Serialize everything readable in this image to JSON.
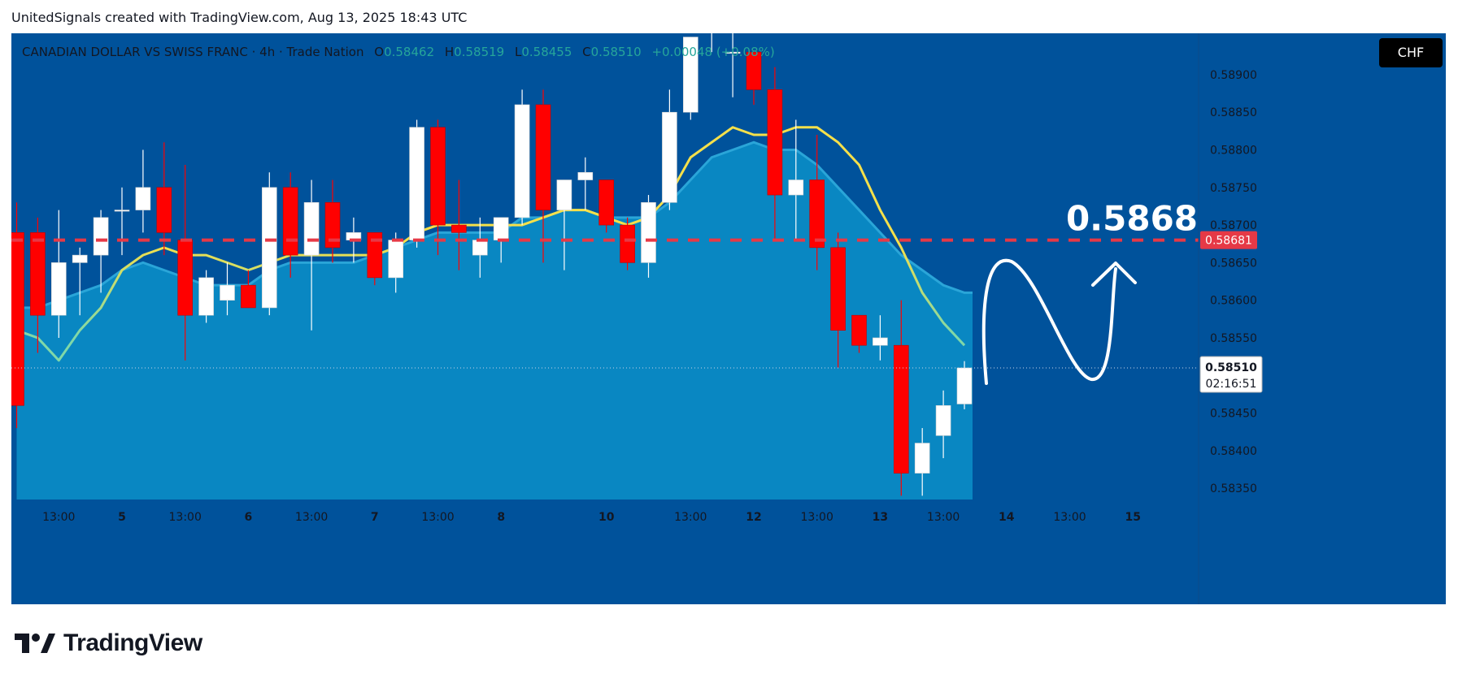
{
  "caption": "UnitedSignals created with TradingView.com, Aug 13, 2025 18:43 UTC",
  "legend": {
    "symbol": "CANADIAN DOLLAR VS SWISS FRANC · 4h · Trade Nation",
    "open_label": "O",
    "open": "0.58462",
    "high_label": "H",
    "high": "0.58519",
    "low_label": "L",
    "low": "0.58455",
    "close_label": "C",
    "close": "0.58510",
    "change": "+0.00048 (+0.08%)"
  },
  "currency": "CHF",
  "brand": "TradingView",
  "colors": {
    "background": "#00529b",
    "area_fill": "#0a8ac4",
    "up_candle": "#ffffff",
    "down_candle": "#ff0000",
    "ma_line_top": "#f5e04a",
    "ma_line_bottom": "#7fd8a8",
    "target_line": "#e63946",
    "price_badge": "#e63946"
  },
  "chart_data": {
    "type": "candlestick",
    "timeframe": "4h",
    "y_range": [
      0.58335,
      0.58955
    ],
    "y_ticks": [
      "0.58900",
      "0.58850",
      "0.58800",
      "0.58750",
      "0.58700",
      "0.58650",
      "0.58600",
      "0.58550",
      "0.58500",
      "0.58450",
      "0.58400",
      "0.58350"
    ],
    "y_tick_values": [
      0.589,
      0.5885,
      0.588,
      0.5875,
      0.587,
      0.5865,
      0.586,
      0.5855,
      0.585,
      0.5845,
      0.584,
      0.5835
    ],
    "x_ticks": [
      {
        "label": "13:00",
        "bar": 2
      },
      {
        "label": "5",
        "bar": 5
      },
      {
        "label": "13:00",
        "bar": 8
      },
      {
        "label": "6",
        "bar": 11
      },
      {
        "label": "13:00",
        "bar": 14
      },
      {
        "label": "7",
        "bar": 17
      },
      {
        "label": "13:00",
        "bar": 20
      },
      {
        "label": "8",
        "bar": 23
      },
      {
        "label": "10",
        "bar": 28
      },
      {
        "label": "13:00",
        "bar": 32
      },
      {
        "label": "12",
        "bar": 35
      },
      {
        "label": "13:00",
        "bar": 38
      },
      {
        "label": "13",
        "bar": 41
      },
      {
        "label": "13:00",
        "bar": 44
      },
      {
        "label": "14",
        "bar": 47
      },
      {
        "label": "13:00",
        "bar": 50
      },
      {
        "label": "15",
        "bar": 53
      }
    ],
    "candles": [
      {
        "o": 0.5869,
        "h": 0.5873,
        "l": 0.5843,
        "c": 0.5846
      },
      {
        "o": 0.5869,
        "h": 0.5871,
        "l": 0.5853,
        "c": 0.5858
      },
      {
        "o": 0.5858,
        "h": 0.5872,
        "l": 0.5855,
        "c": 0.5865
      },
      {
        "o": 0.5865,
        "h": 0.5867,
        "l": 0.5858,
        "c": 0.5866
      },
      {
        "o": 0.5866,
        "h": 0.5872,
        "l": 0.5861,
        "c": 0.5871
      },
      {
        "o": 0.5872,
        "h": 0.5875,
        "l": 0.5866,
        "c": 0.5872
      },
      {
        "o": 0.5872,
        "h": 0.588,
        "l": 0.5869,
        "c": 0.5875
      },
      {
        "o": 0.5875,
        "h": 0.5881,
        "l": 0.5866,
        "c": 0.5869
      },
      {
        "o": 0.5868,
        "h": 0.5878,
        "l": 0.5852,
        "c": 0.5858
      },
      {
        "o": 0.5858,
        "h": 0.5864,
        "l": 0.5857,
        "c": 0.5863
      },
      {
        "o": 0.586,
        "h": 0.5865,
        "l": 0.5858,
        "c": 0.5862
      },
      {
        "o": 0.5862,
        "h": 0.5864,
        "l": 0.5859,
        "c": 0.5859
      },
      {
        "o": 0.5859,
        "h": 0.5877,
        "l": 0.5858,
        "c": 0.5875
      },
      {
        "o": 0.5875,
        "h": 0.5877,
        "l": 0.5863,
        "c": 0.5866
      },
      {
        "o": 0.5866,
        "h": 0.5876,
        "l": 0.5856,
        "c": 0.5873
      },
      {
        "o": 0.5873,
        "h": 0.5876,
        "l": 0.5865,
        "c": 0.5867
      },
      {
        "o": 0.5868,
        "h": 0.5871,
        "l": 0.5865,
        "c": 0.5869
      },
      {
        "o": 0.5869,
        "h": 0.5869,
        "l": 0.5862,
        "c": 0.5863
      },
      {
        "o": 0.5863,
        "h": 0.5869,
        "l": 0.5861,
        "c": 0.5868
      },
      {
        "o": 0.5868,
        "h": 0.5884,
        "l": 0.5867,
        "c": 0.5883
      },
      {
        "o": 0.5883,
        "h": 0.5884,
        "l": 0.5866,
        "c": 0.587
      },
      {
        "o": 0.587,
        "h": 0.5876,
        "l": 0.5864,
        "c": 0.5869
      },
      {
        "o": 0.5866,
        "h": 0.5871,
        "l": 0.5863,
        "c": 0.5868
      },
      {
        "o": 0.5868,
        "h": 0.5871,
        "l": 0.5865,
        "c": 0.5871
      },
      {
        "o": 0.5871,
        "h": 0.5888,
        "l": 0.587,
        "c": 0.5886
      },
      {
        "o": 0.5886,
        "h": 0.5888,
        "l": 0.5865,
        "c": 0.5872
      },
      {
        "o": 0.5872,
        "h": 0.5876,
        "l": 0.5864,
        "c": 0.5876
      },
      {
        "o": 0.5876,
        "h": 0.5879,
        "l": 0.5872,
        "c": 0.5877
      },
      {
        "o": 0.5876,
        "h": 0.5876,
        "l": 0.5869,
        "c": 0.587
      },
      {
        "o": 0.587,
        "h": 0.5871,
        "l": 0.5864,
        "c": 0.5865
      },
      {
        "o": 0.5865,
        "h": 0.5874,
        "l": 0.5863,
        "c": 0.5873
      },
      {
        "o": 0.5873,
        "h": 0.5888,
        "l": 0.5872,
        "c": 0.5885
      },
      {
        "o": 0.5885,
        "h": 0.5895,
        "l": 0.5884,
        "c": 0.5895
      },
      {
        "o": 0.5896,
        "h": 0.5902,
        "l": 0.5893,
        "c": 0.5896
      },
      {
        "o": 0.5893,
        "h": 0.5902,
        "l": 0.5887,
        "c": 0.5893
      },
      {
        "o": 0.5893,
        "h": 0.5893,
        "l": 0.5886,
        "c": 0.5888
      },
      {
        "o": 0.5888,
        "h": 0.5891,
        "l": 0.5868,
        "c": 0.5874
      },
      {
        "o": 0.5874,
        "h": 0.5884,
        "l": 0.5868,
        "c": 0.5876
      },
      {
        "o": 0.5876,
        "h": 0.5882,
        "l": 0.5864,
        "c": 0.5867
      },
      {
        "o": 0.5867,
        "h": 0.5869,
        "l": 0.5851,
        "c": 0.5856
      },
      {
        "o": 0.5858,
        "h": 0.5858,
        "l": 0.5853,
        "c": 0.5854
      },
      {
        "o": 0.5854,
        "h": 0.5858,
        "l": 0.5852,
        "c": 0.5855
      },
      {
        "o": 0.5854,
        "h": 0.586,
        "l": 0.5834,
        "c": 0.5837
      },
      {
        "o": 0.5837,
        "h": 0.5843,
        "l": 0.5834,
        "c": 0.5841
      },
      {
        "o": 0.5842,
        "h": 0.5848,
        "l": 0.5839,
        "c": 0.5846
      },
      {
        "o": 0.58462,
        "h": 0.58519,
        "l": 0.58455,
        "c": 0.5851
      }
    ],
    "ma_fast": [
      0.5856,
      0.5855,
      0.5852,
      0.5856,
      0.5859,
      0.5864,
      0.5866,
      0.5867,
      0.5866,
      0.5866,
      0.5865,
      0.5864,
      0.5865,
      0.5866,
      0.5866,
      0.5866,
      0.5866,
      0.5866,
      0.5867,
      0.5869,
      0.587,
      0.587,
      0.587,
      0.587,
      0.587,
      0.5871,
      0.5872,
      0.5872,
      0.5871,
      0.587,
      0.5871,
      0.5874,
      0.5879,
      0.5881,
      0.5883,
      0.5882,
      0.5882,
      0.5883,
      0.5883,
      0.5881,
      0.5878,
      0.5872,
      0.5867,
      0.5861,
      0.5857,
      0.5854
    ],
    "ma_band": [
      0.5859,
      0.5859,
      0.586,
      0.5861,
      0.5862,
      0.5864,
      0.5865,
      0.5864,
      0.5863,
      0.5862,
      0.5862,
      0.5862,
      0.5864,
      0.5865,
      0.5865,
      0.5865,
      0.5865,
      0.5866,
      0.5867,
      0.5868,
      0.5869,
      0.5869,
      0.5869,
      0.5869,
      0.5871,
      0.5871,
      0.5872,
      0.5872,
      0.5871,
      0.5871,
      0.5871,
      0.5873,
      0.5876,
      0.5879,
      0.588,
      0.5881,
      0.588,
      0.588,
      0.5878,
      0.5875,
      0.5872,
      0.5869,
      0.5866,
      0.5864,
      0.5862,
      0.5861
    ],
    "target_price": 0.5868,
    "target_label": "0.5868",
    "target_badge": "0.58681",
    "last_price": 0.5851,
    "last_price_label": "0.58510",
    "countdown": "02:16:51",
    "grid": false,
    "projection_path": "down-up-down-up arrow to 0.5868"
  }
}
